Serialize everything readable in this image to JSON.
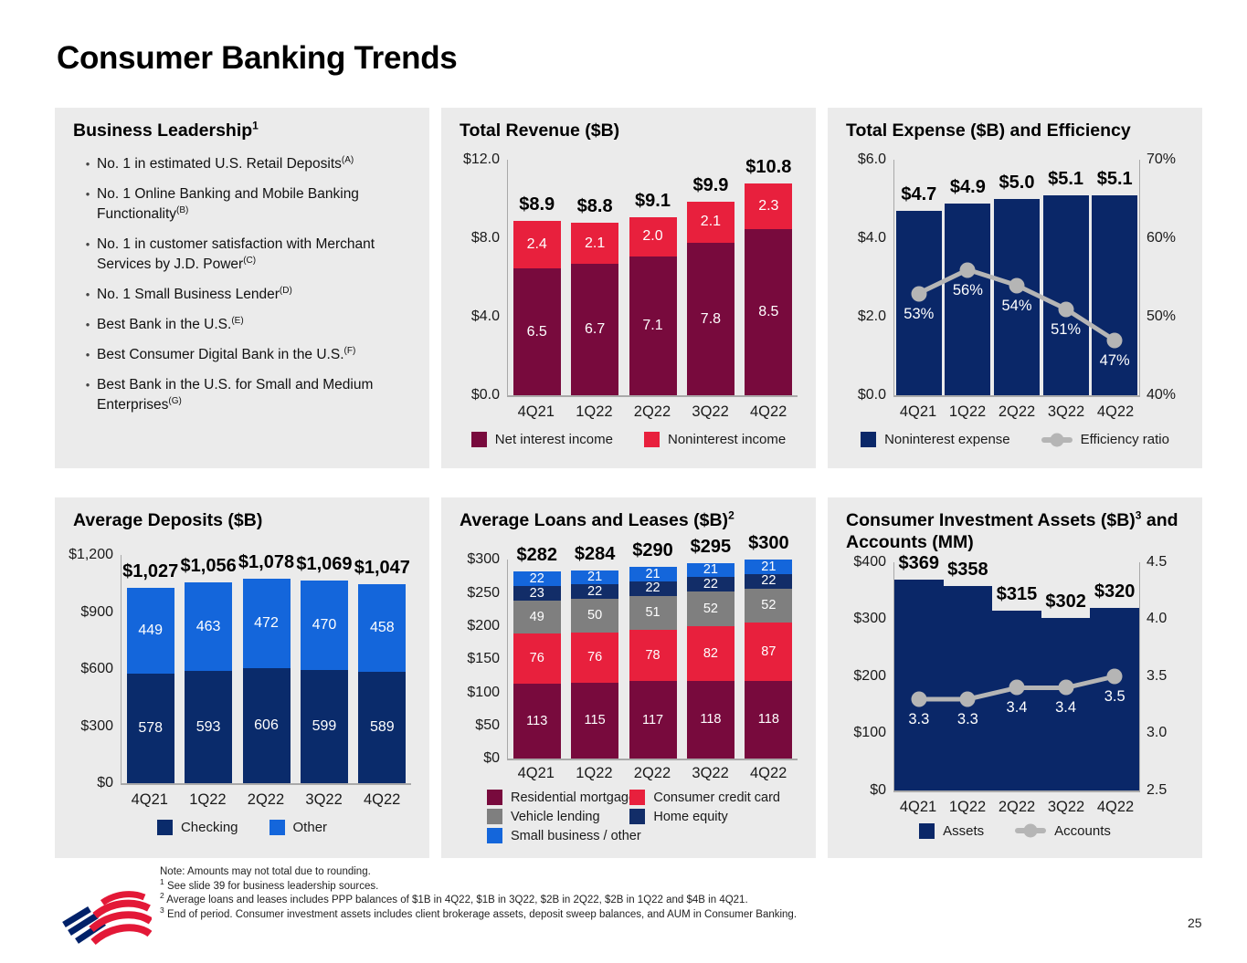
{
  "title": "Consumer Banking Trends",
  "page_number": "25",
  "colors": {
    "panel_bg": "#EBEBEB",
    "maroon": "#780A3D",
    "red": "#E8203D",
    "navy": "#0A2768",
    "checking_navy": "#0A2B6B",
    "bright_blue": "#1466DB",
    "gray_bar": "#7F7F7F",
    "line_gray": "#B5B5B5"
  },
  "leadership": {
    "title": "Business Leadership",
    "title_sup": "1",
    "items": [
      {
        "text": "No. 1 in estimated U.S. Retail Deposits",
        "sup": "(A)"
      },
      {
        "text": "No. 1 Online Banking and Mobile Banking Functionality",
        "sup": "(B)"
      },
      {
        "text": "No. 1 in customer satisfaction with Merchant Services by J.D. Power",
        "sup": "(C)"
      },
      {
        "text": "No. 1 Small Business Lender",
        "sup": "(D)"
      },
      {
        "text": "Best Bank in the U.S.",
        "sup": "(E)"
      },
      {
        "text": "Best Consumer Digital Bank in the U.S.",
        "sup": "(F)"
      },
      {
        "text": "Best Bank in the U.S. for Small and Medium Enterprises",
        "sup": "(G)"
      }
    ]
  },
  "chart_data": [
    {
      "id": "revenue",
      "type": "stacked-bar",
      "title": "Total Revenue ($B)",
      "categories": [
        "4Q21",
        "1Q22",
        "2Q22",
        "3Q22",
        "4Q22"
      ],
      "series": [
        {
          "name": "Net interest income",
          "color": "#780A3D",
          "values": [
            6.5,
            6.7,
            7.1,
            7.8,
            8.5
          ],
          "labels": [
            "6.5",
            "6.7",
            "7.1",
            "7.8",
            "8.5"
          ]
        },
        {
          "name": "Noninterest income",
          "color": "#E8203D",
          "values": [
            2.4,
            2.1,
            2.0,
            2.1,
            2.3
          ],
          "labels": [
            "2.4",
            "2.1",
            "2.0",
            "2.1",
            "2.3"
          ]
        }
      ],
      "totals": [
        "$8.9",
        "$8.8",
        "$9.1",
        "$9.9",
        "$10.8"
      ],
      "left_axis": {
        "ticks": [
          "$12.0",
          "$8.0",
          "$4.0",
          "$0.0"
        ],
        "max": 12
      },
      "legend": [
        {
          "label": "Net interest income",
          "color": "#780A3D",
          "type": "square"
        },
        {
          "label": "Noninterest income",
          "color": "#E8203D",
          "type": "square"
        }
      ]
    },
    {
      "id": "expense",
      "type": "bar-line",
      "title": "Total Expense ($B) and Efficiency",
      "categories": [
        "4Q21",
        "1Q22",
        "2Q22",
        "3Q22",
        "4Q22"
      ],
      "bars": {
        "name": "Noninterest expense",
        "color": "#0A2768",
        "values": [
          4.7,
          4.9,
          5.0,
          5.1,
          5.1
        ],
        "labels": [
          "$4.7",
          "$4.9",
          "$5.0",
          "$5.1",
          "$5.1"
        ]
      },
      "line": {
        "name": "Efficiency ratio",
        "color": "#B5B5B5",
        "values": [
          53,
          56,
          54,
          51,
          47
        ],
        "labels": [
          "53%",
          "56%",
          "54%",
          "51%",
          "47%"
        ]
      },
      "left_axis": {
        "ticks": [
          "$6.0",
          "$4.0",
          "$2.0",
          "$0.0"
        ],
        "max": 6
      },
      "right_axis": {
        "ticks": [
          "70%",
          "60%",
          "50%",
          "40%"
        ],
        "min": 40,
        "max": 70
      },
      "legend": [
        {
          "label": "Noninterest expense",
          "color": "#0A2768",
          "type": "square"
        },
        {
          "label": "Efficiency ratio",
          "color": "#B5B5B5",
          "type": "line"
        }
      ]
    },
    {
      "id": "deposits",
      "type": "stacked-bar",
      "title": "Average Deposits ($B)",
      "categories": [
        "4Q21",
        "1Q22",
        "2Q22",
        "3Q22",
        "4Q22"
      ],
      "series": [
        {
          "name": "Checking",
          "color": "#0A2B6B",
          "values": [
            578,
            593,
            606,
            599,
            589
          ],
          "labels": [
            "578",
            "593",
            "606",
            "599",
            "589"
          ]
        },
        {
          "name": "Other",
          "color": "#1466DB",
          "values": [
            449,
            463,
            472,
            470,
            458
          ],
          "labels": [
            "449",
            "463",
            "472",
            "470",
            "458"
          ]
        }
      ],
      "totals": [
        "$1,027",
        "$1,056",
        "$1,078",
        "$1,069",
        "$1,047"
      ],
      "left_axis": {
        "ticks": [
          "$1,200",
          "$900",
          "$600",
          "$300",
          "$0"
        ],
        "max": 1200
      },
      "legend": [
        {
          "label": "Checking",
          "color": "#0A2B6B",
          "type": "square"
        },
        {
          "label": "Other",
          "color": "#1466DB",
          "type": "square"
        }
      ]
    },
    {
      "id": "loans",
      "type": "stacked-bar",
      "title": "Average Loans and Leases ($B)",
      "title_sup": "2",
      "categories": [
        "4Q21",
        "1Q22",
        "2Q22",
        "3Q22",
        "4Q22"
      ],
      "series": [
        {
          "name": "Residential mortgage",
          "color": "#780A3D",
          "values": [
            113,
            115,
            117,
            118,
            118
          ],
          "labels": [
            "113",
            "115",
            "117",
            "118",
            "118"
          ]
        },
        {
          "name": "Consumer credit card",
          "color": "#E8203D",
          "values": [
            76,
            76,
            78,
            82,
            87
          ],
          "labels": [
            "76",
            "76",
            "78",
            "82",
            "87"
          ]
        },
        {
          "name": "Vehicle lending",
          "color": "#7F7F7F",
          "values": [
            49,
            50,
            51,
            52,
            52
          ],
          "labels": [
            "49",
            "50",
            "51",
            "52",
            "52"
          ]
        },
        {
          "name": "Home equity",
          "color": "#122D68",
          "values": [
            23,
            22,
            22,
            22,
            22
          ],
          "labels": [
            "23",
            "22",
            "22",
            "22",
            "22"
          ]
        },
        {
          "name": "Small business / other",
          "color": "#1466DB",
          "values": [
            22,
            21,
            21,
            21,
            21
          ],
          "labels": [
            "22",
            "21",
            "21",
            "21",
            "21"
          ]
        }
      ],
      "totals": [
        "$282",
        "$284",
        "$290",
        "$295",
        "$300"
      ],
      "left_axis": {
        "ticks": [
          "$300",
          "$250",
          "$200",
          "$150",
          "$100",
          "$50",
          "$0"
        ],
        "max": 300
      },
      "legend_columns": 2,
      "legend": [
        {
          "label": "Residential mortgage",
          "color": "#780A3D",
          "type": "square"
        },
        {
          "label": "Consumer credit card",
          "color": "#E8203D",
          "type": "square"
        },
        {
          "label": "Vehicle lending",
          "color": "#7F7F7F",
          "type": "square"
        },
        {
          "label": "Home equity",
          "color": "#122D68",
          "type": "square"
        },
        {
          "label": "Small business / other",
          "color": "#1466DB",
          "type": "square"
        }
      ]
    },
    {
      "id": "investments",
      "type": "bar-line",
      "title": "Consumer Investment Assets ($B)",
      "title_sup": "3",
      "title_post": " and Accounts (MM)",
      "categories": [
        "4Q21",
        "1Q22",
        "2Q22",
        "3Q22",
        "4Q22"
      ],
      "bars": {
        "name": "Assets",
        "color": "#0A2768",
        "values": [
          369,
          358,
          315,
          302,
          320
        ],
        "labels": [
          "$369",
          "$358",
          "$315",
          "$302",
          "$320"
        ]
      },
      "line": {
        "name": "Accounts",
        "color": "#B5B5B5",
        "values": [
          3.3,
          3.3,
          3.4,
          3.4,
          3.5
        ],
        "labels": [
          "3.3",
          "3.3",
          "3.4",
          "3.4",
          "3.5"
        ]
      },
      "left_axis": {
        "ticks": [
          "$400",
          "$300",
          "$200",
          "$100",
          "$0"
        ],
        "max": 400
      },
      "right_axis": {
        "ticks": [
          "4.5",
          "4.0",
          "3.5",
          "3.0",
          "2.5"
        ],
        "min": 2.5,
        "max": 4.5
      },
      "legend": [
        {
          "label": "Assets",
          "color": "#0A2768",
          "type": "square"
        },
        {
          "label": "Accounts",
          "color": "#B5B5B5",
          "type": "line"
        }
      ]
    }
  ],
  "footnotes": {
    "note": "Note: Amounts may not total due to rounding.",
    "items": [
      {
        "sup": "1",
        "text": "See slide 39 for business leadership sources."
      },
      {
        "sup": "2",
        "text": "Average loans and leases includes PPP balances of $1B in 4Q22, $1B in 3Q22, $2B in 2Q22, $2B in 1Q22 and $4B in 4Q21."
      },
      {
        "sup": "3",
        "text": "End of period. Consumer investment assets includes client brokerage assets, deposit sweep balances, and AUM in Consumer Banking."
      }
    ]
  }
}
